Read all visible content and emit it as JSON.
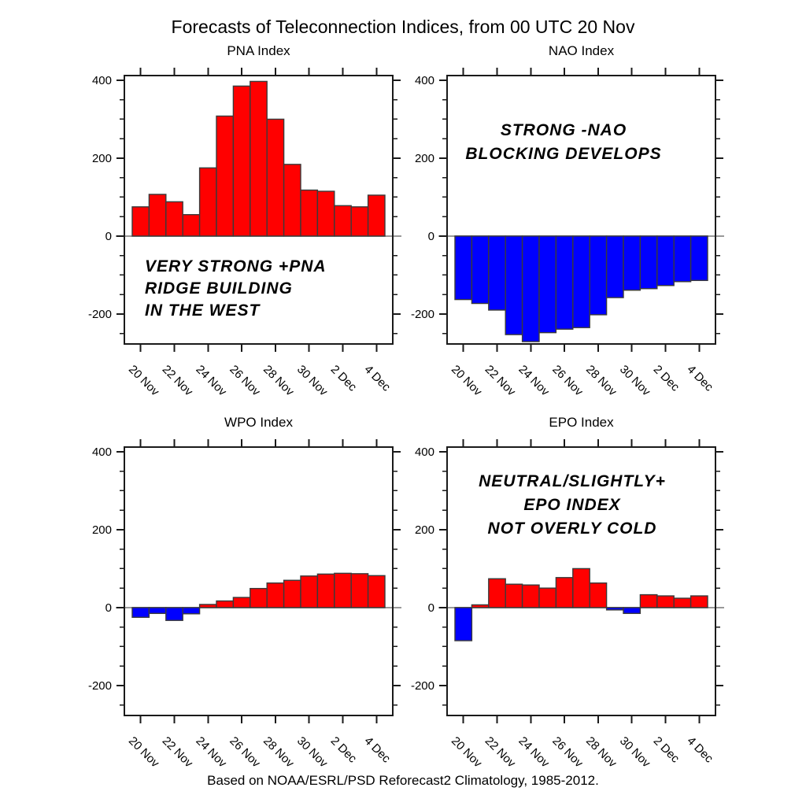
{
  "page_title": "Forecasts of Teleconnection Indices, from 00 UTC 20 Nov",
  "footer": "Based on NOAA/ESRL/PSD Reforecast2 Climatology, 1985-2012.",
  "colors": {
    "positive_bar": "#ff0000",
    "negative_bar": "#0000ff",
    "bar_outline": "#3a3a3a",
    "zero_line": "#999999",
    "axis": "#1a1a1a",
    "text": "#000000",
    "background": "#ffffff"
  },
  "axis": {
    "x_tick_labels": [
      "20 Nov",
      "22 Nov",
      "24 Nov",
      "26 Nov",
      "28 Nov",
      "30 Nov",
      "2 Dec",
      "4 Dec"
    ],
    "y_major_ticks": [
      400,
      200,
      0,
      -200
    ],
    "y_minor_step": 50,
    "ylim": [
      -277,
      412
    ]
  },
  "categories": [
    "20 Nov",
    "21 Nov",
    "22 Nov",
    "23 Nov",
    "24 Nov",
    "25 Nov",
    "26 Nov",
    "27 Nov",
    "28 Nov",
    "29 Nov",
    "30 Nov",
    "1 Dec",
    "2 Dec",
    "3 Dec",
    "4 Dec"
  ],
  "chart_data": [
    {
      "type": "bar",
      "title": "PNA Index",
      "categories": [
        "20 Nov",
        "21 Nov",
        "22 Nov",
        "23 Nov",
        "24 Nov",
        "25 Nov",
        "26 Nov",
        "27 Nov",
        "28 Nov",
        "29 Nov",
        "30 Nov",
        "1 Dec",
        "2 Dec",
        "3 Dec",
        "4 Dec"
      ],
      "values": [
        75,
        107,
        88,
        55,
        175,
        308,
        385,
        397,
        300,
        184,
        118,
        115,
        78,
        75,
        105
      ],
      "ylim": [
        -277,
        412
      ],
      "annotation": [
        "VERY STRONG +PNA",
        "RIDGE BUILDING",
        "IN THE WEST"
      ]
    },
    {
      "type": "bar",
      "title": "NAO Index",
      "categories": [
        "20 Nov",
        "21 Nov",
        "22 Nov",
        "23 Nov",
        "24 Nov",
        "25 Nov",
        "26 Nov",
        "27 Nov",
        "28 Nov",
        "29 Nov",
        "30 Nov",
        "1 Dec",
        "2 Dec",
        "3 Dec",
        "4 Dec"
      ],
      "values": [
        -163,
        -173,
        -190,
        -253,
        -271,
        -248,
        -239,
        -235,
        -202,
        -158,
        -139,
        -135,
        -127,
        -117,
        -114
      ],
      "ylim": [
        -277,
        412
      ],
      "annotation": [
        "STRONG -NAO",
        "BLOCKING DEVELOPS"
      ]
    },
    {
      "type": "bar",
      "title": "WPO Index",
      "categories": [
        "20 Nov",
        "21 Nov",
        "22 Nov",
        "23 Nov",
        "24 Nov",
        "25 Nov",
        "26 Nov",
        "27 Nov",
        "28 Nov",
        "29 Nov",
        "30 Nov",
        "1 Dec",
        "2 Dec",
        "3 Dec",
        "4 Dec"
      ],
      "values": [
        -25,
        -15,
        -33,
        -16,
        8,
        17,
        26,
        49,
        63,
        70,
        81,
        86,
        88,
        87,
        82
      ],
      "ylim": [
        -277,
        412
      ],
      "annotation": []
    },
    {
      "type": "bar",
      "title": "EPO Index",
      "categories": [
        "20 Nov",
        "21 Nov",
        "22 Nov",
        "23 Nov",
        "24 Nov",
        "25 Nov",
        "26 Nov",
        "27 Nov",
        "28 Nov",
        "29 Nov",
        "30 Nov",
        "1 Dec",
        "2 Dec",
        "3 Dec",
        "4 Dec"
      ],
      "values": [
        -85,
        7,
        74,
        60,
        58,
        50,
        77,
        100,
        63,
        -6,
        -15,
        33,
        30,
        24,
        30
      ],
      "ylim": [
        -277,
        412
      ],
      "annotation": [
        "NEUTRAL/SLIGHTLY+",
        "EPO INDEX",
        "NOT OVERLY COLD"
      ]
    }
  ]
}
